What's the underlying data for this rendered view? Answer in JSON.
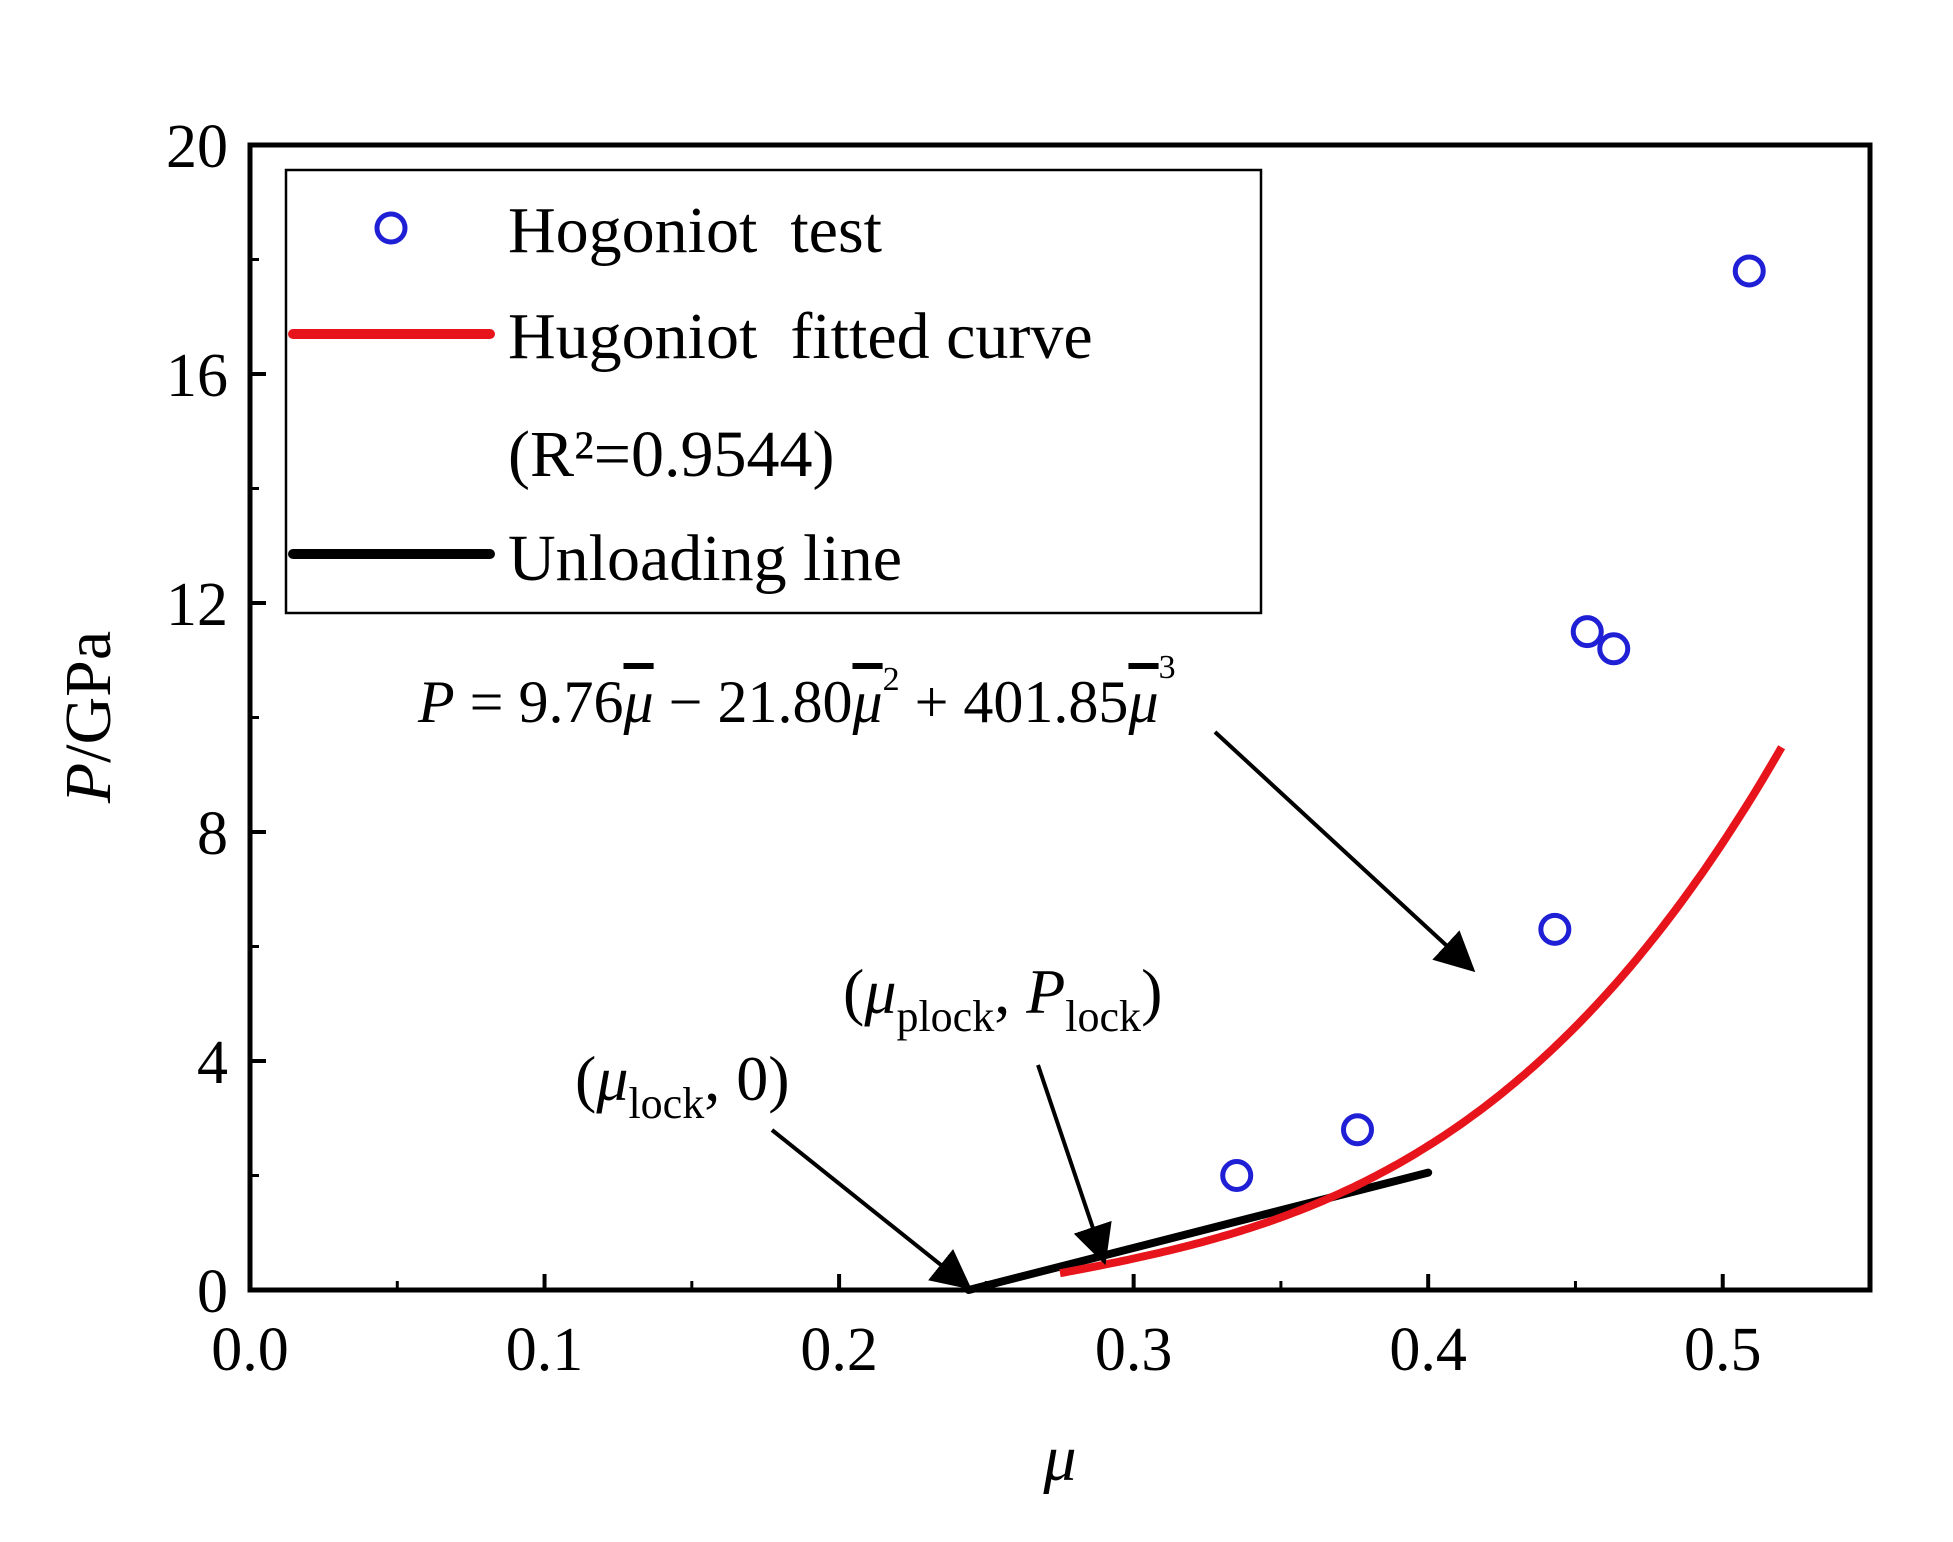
{
  "chart_data": {
    "type": "scatter",
    "title": "",
    "xlabel": "μ",
    "ylabel_italic": "P",
    "ylabel_rest": "/GPa",
    "xlim": [
      0.0,
      0.55
    ],
    "ylim": [
      0,
      20
    ],
    "x_ticks": [
      0.0,
      0.1,
      0.2,
      0.3,
      0.4,
      0.5
    ],
    "x_tick_labels": [
      "0.0",
      "0.1",
      "0.2",
      "0.3",
      "0.4",
      "0.5"
    ],
    "y_ticks": [
      0,
      4,
      8,
      12,
      16,
      20
    ],
    "y_tick_labels": [
      "0",
      "4",
      "8",
      "12",
      "16",
      "20"
    ],
    "grid": false,
    "legend_position": "top-left",
    "series": [
      {
        "name": "Hogoniot  test",
        "kind": "scatter",
        "color": "#1f1fd6",
        "points": [
          {
            "x": 0.335,
            "y": 2.0
          },
          {
            "x": 0.376,
            "y": 2.8
          },
          {
            "x": 0.443,
            "y": 6.3
          },
          {
            "x": 0.454,
            "y": 11.5
          },
          {
            "x": 0.463,
            "y": 11.2
          },
          {
            "x": 0.509,
            "y": 17.8
          }
        ]
      },
      {
        "name": "Hugoniot  fitted curve",
        "name_line2": "(R²=0.9544)",
        "kind": "line",
        "color": "#e8141b",
        "x_start": 0.275,
        "x_end": 0.52,
        "x_offset": 0.244,
        "coefficients": [
          9.76,
          -21.8,
          401.85
        ]
      },
      {
        "name": "Unloading line",
        "kind": "line",
        "color": "#000000",
        "points": [
          {
            "x": 0.244,
            "y": 0.0
          },
          {
            "x": 0.4,
            "y": 2.05
          }
        ]
      }
    ],
    "annotations": {
      "equation": {
        "p": "P",
        "eq1": " = 9.76",
        "mu": "μ",
        "minus": " − 21.80",
        "sup2": "2",
        "plus": " + 401.85",
        "sup3": "3",
        "arrow_target": {
          "x": 0.415,
          "y": 5.6
        }
      },
      "plock": {
        "open": "(",
        "mu": "μ",
        "sub1": "plock",
        "comma": ", ",
        "p": "P",
        "sub2": "lock",
        "close": ")",
        "arrow_target": {
          "x": 0.29,
          "y": 0.5
        }
      },
      "lock": {
        "open": "(",
        "mu": "μ",
        "sub1": "lock",
        "rest": ", 0)",
        "arrow_target": {
          "x": 0.244,
          "y": 0.05
        }
      }
    }
  }
}
